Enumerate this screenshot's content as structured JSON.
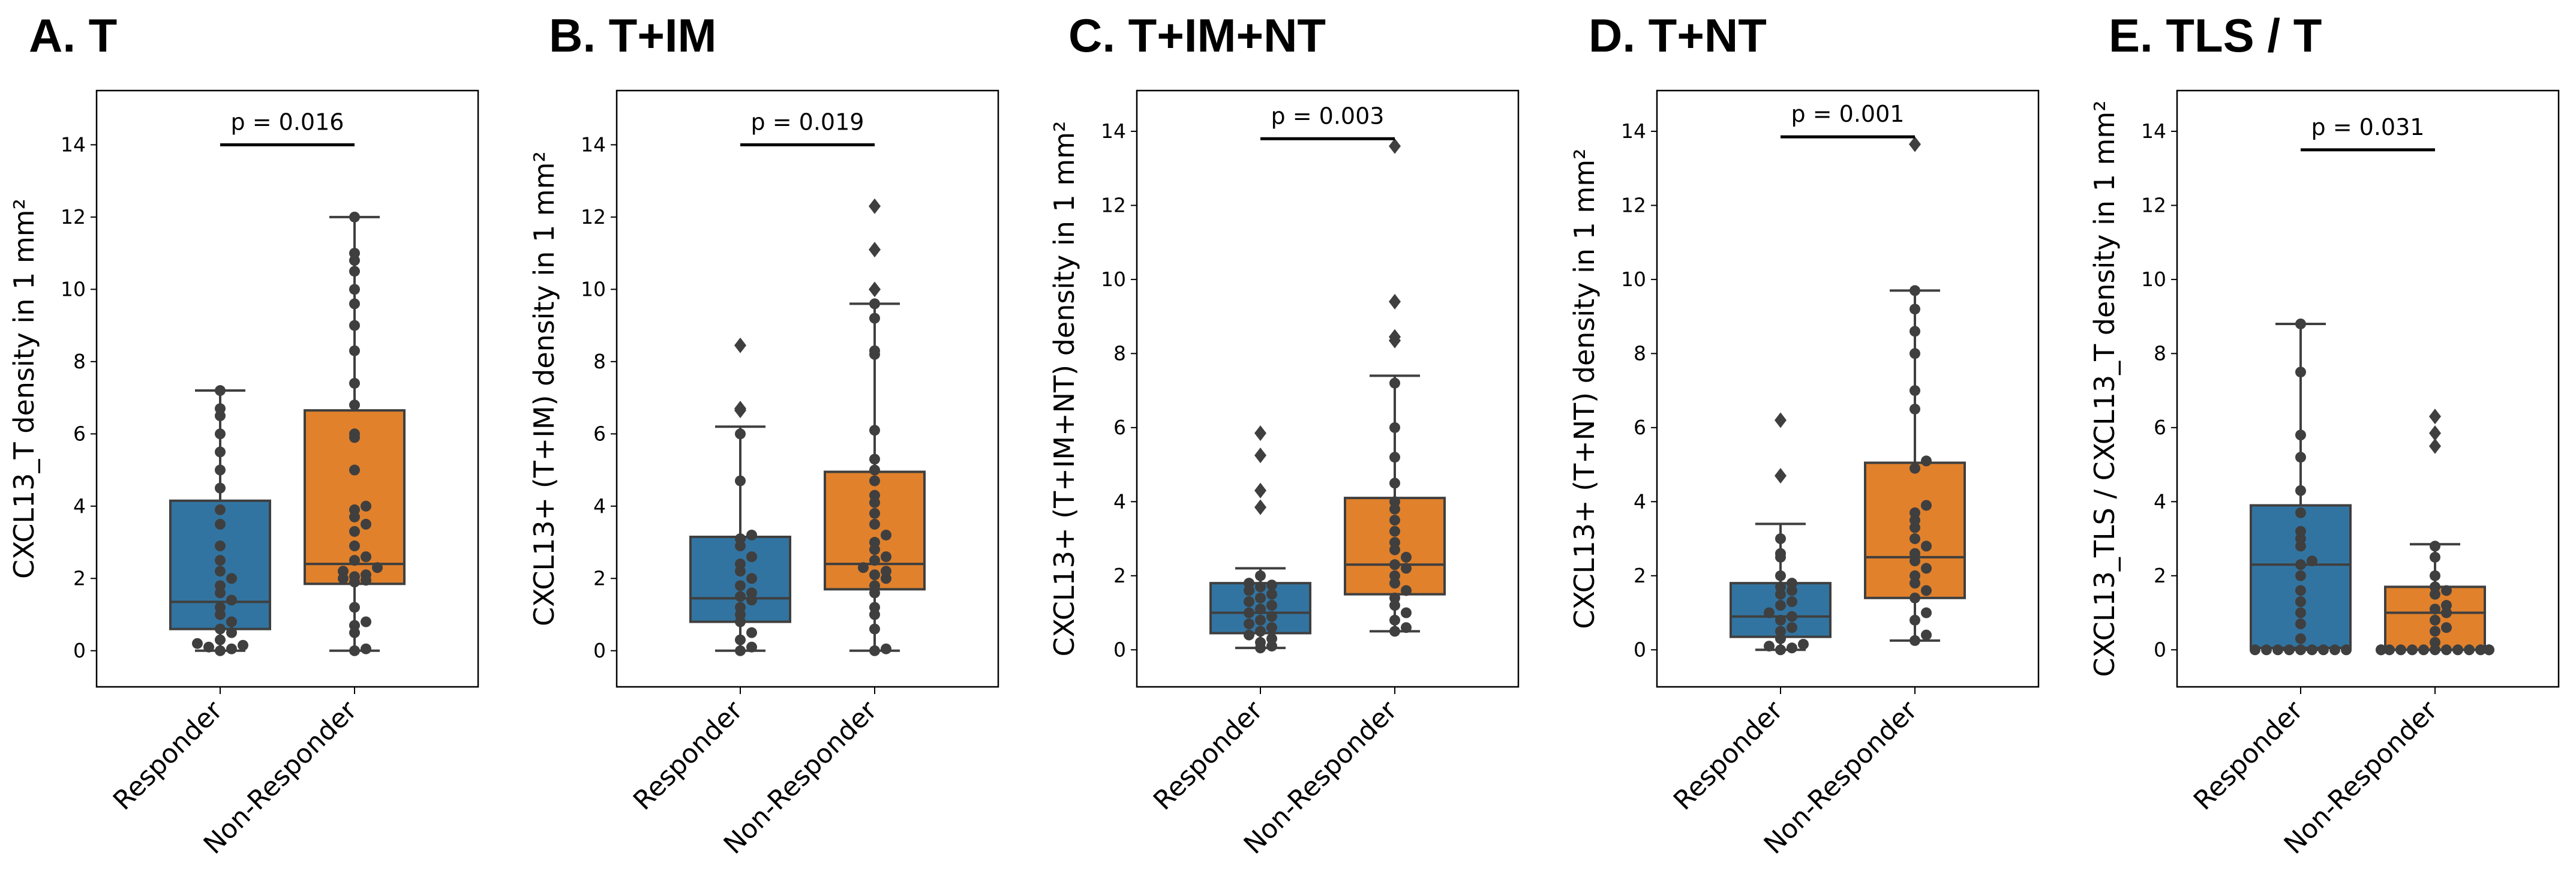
{
  "chart_data": [
    {
      "type": "box",
      "title": "A. T",
      "ylabel": "CXCL13_T density in 1 mm²",
      "categories": [
        "Responder",
        "Non-Responder"
      ],
      "yticks": [
        "0",
        "2",
        "4",
        "6",
        "8",
        "10",
        "12",
        "14"
      ],
      "ylim": [
        -1,
        15.5
      ],
      "p_value": "p = 0.016",
      "p_line_y": 14.0,
      "series": [
        {
          "category": "Responder",
          "box": {
            "whisker_low": 0.0,
            "q1": 0.6,
            "median": 1.35,
            "q3": 4.15,
            "whisker_high": 7.2
          },
          "points": [
            0.0,
            0.05,
            0.1,
            0.15,
            0.2,
            0.3,
            0.5,
            0.6,
            0.8,
            1.0,
            1.2,
            1.4,
            1.6,
            1.8,
            2.0,
            2.2,
            2.5,
            2.9,
            3.5,
            3.9,
            4.5,
            5.0,
            5.5,
            6.0,
            6.5,
            6.7,
            7.2
          ]
        },
        {
          "category": "Non-Responder",
          "box": {
            "whisker_low": 0.0,
            "q1": 1.85,
            "median": 2.4,
            "q3": 6.65,
            "whisker_high": 12.0
          },
          "points": [
            0.0,
            0.05,
            0.5,
            0.7,
            0.8,
            1.2,
            1.9,
            1.95,
            2.0,
            2.05,
            2.1,
            2.2,
            2.3,
            2.5,
            2.6,
            2.9,
            3.3,
            3.5,
            3.7,
            3.9,
            4.0,
            5.0,
            5.9,
            6.0,
            6.8,
            7.4,
            8.3,
            9.0,
            9.6,
            10.0,
            10.5,
            10.8,
            11.0,
            12.0
          ]
        }
      ]
    },
    {
      "type": "box",
      "title": "B. T+IM",
      "ylabel": "CXCL13+ (T+IM) density in 1 mm²",
      "categories": [
        "Responder",
        "Non-Responder"
      ],
      "yticks": [
        "0",
        "2",
        "4",
        "6",
        "8",
        "10",
        "12",
        "14"
      ],
      "ylim": [
        -1,
        15.5
      ],
      "p_value": "p = 0.019",
      "p_line_y": 14.0,
      "series": [
        {
          "category": "Responder",
          "box": {
            "whisker_low": 0.0,
            "q1": 0.8,
            "median": 1.45,
            "q3": 3.15,
            "whisker_high": 6.2
          },
          "outliers": [
            6.65,
            6.7,
            8.45
          ],
          "points": [
            0.0,
            0.1,
            0.3,
            0.5,
            0.8,
            1.0,
            1.2,
            1.4,
            1.5,
            1.6,
            1.8,
            2.0,
            2.2,
            2.4,
            2.6,
            2.9,
            3.1,
            3.2,
            4.7,
            6.0
          ]
        },
        {
          "category": "Non-Responder",
          "box": {
            "whisker_low": 0.0,
            "q1": 1.7,
            "median": 2.4,
            "q3": 4.95,
            "whisker_high": 9.6
          },
          "outliers": [
            10.0,
            11.1,
            12.3
          ],
          "points": [
            0.0,
            0.05,
            0.6,
            1.0,
            1.2,
            1.6,
            1.8,
            2.0,
            2.1,
            2.2,
            2.3,
            2.5,
            2.6,
            2.8,
            3.0,
            3.2,
            3.5,
            3.8,
            4.1,
            4.3,
            4.7,
            5.0,
            5.3,
            6.1,
            8.2,
            8.3,
            9.2,
            9.6
          ]
        }
      ]
    },
    {
      "type": "box",
      "title": "C. T+IM+NT",
      "ylabel": "CXCL13+ (T+IM+NT) density in 1 mm²",
      "categories": [
        "Responder",
        "Non-Responder"
      ],
      "yticks": [
        "0",
        "2",
        "4",
        "6",
        "8",
        "10",
        "12",
        "14"
      ],
      "ylim": [
        -1,
        15.1
      ],
      "p_value": "p = 0.003",
      "p_line_y": 13.8,
      "series": [
        {
          "category": "Responder",
          "box": {
            "whisker_low": 0.05,
            "q1": 0.45,
            "median": 1.0,
            "q3": 1.8,
            "whisker_high": 2.2
          },
          "outliers": [
            3.85,
            4.3,
            5.25,
            5.85
          ],
          "points": [
            0.05,
            0.1,
            0.2,
            0.3,
            0.4,
            0.5,
            0.6,
            0.7,
            0.8,
            0.9,
            1.0,
            1.1,
            1.2,
            1.3,
            1.4,
            1.5,
            1.6,
            1.7,
            1.75,
            1.8,
            2.0
          ]
        },
        {
          "category": "Non-Responder",
          "box": {
            "whisker_low": 0.5,
            "q1": 1.5,
            "median": 2.3,
            "q3": 4.1,
            "whisker_high": 7.4
          },
          "outliers": [
            8.35,
            8.45,
            9.4,
            13.6
          ],
          "points": [
            0.5,
            0.6,
            0.8,
            1.0,
            1.2,
            1.4,
            1.6,
            1.8,
            2.0,
            2.2,
            2.3,
            2.5,
            2.7,
            2.9,
            3.2,
            3.5,
            3.8,
            4.0,
            4.5,
            5.2,
            6.0,
            7.2
          ]
        }
      ]
    },
    {
      "type": "box",
      "title": "D. T+NT",
      "ylabel": "CXCL13+ (T+NT) density in 1 mm²",
      "categories": [
        "Responder",
        "Non-Responder"
      ],
      "yticks": [
        "0",
        "2",
        "4",
        "6",
        "8",
        "10",
        "12",
        "14"
      ],
      "ylim": [
        -1,
        15.1
      ],
      "p_value": "p = 0.001",
      "p_line_y": 13.85,
      "series": [
        {
          "category": "Responder",
          "box": {
            "whisker_low": 0.0,
            "q1": 0.35,
            "median": 0.9,
            "q3": 1.8,
            "whisker_high": 3.4
          },
          "outliers": [
            4.7,
            6.2
          ],
          "points": [
            0.0,
            0.05,
            0.1,
            0.15,
            0.3,
            0.5,
            0.6,
            0.8,
            0.9,
            1.0,
            1.2,
            1.3,
            1.5,
            1.6,
            1.7,
            1.8,
            2.0,
            2.5,
            2.6,
            3.0
          ]
        },
        {
          "category": "Non-Responder",
          "box": {
            "whisker_low": 0.25,
            "q1": 1.4,
            "median": 2.5,
            "q3": 5.05,
            "whisker_high": 9.7
          },
          "outliers": [
            13.65
          ],
          "points": [
            0.25,
            0.4,
            0.8,
            1.0,
            1.4,
            1.6,
            1.8,
            2.0,
            2.2,
            2.4,
            2.6,
            2.8,
            3.0,
            3.3,
            3.5,
            3.7,
            3.9,
            4.9,
            5.1,
            6.5,
            7.0,
            8.0,
            8.6,
            9.2,
            9.7
          ]
        }
      ]
    },
    {
      "type": "box",
      "title": "E. TLS / T",
      "ylabel": "CXCL13_TLS / CXCL13_T density in 1 mm²",
      "categories": [
        "Responder",
        "Non-Responder"
      ],
      "yticks": [
        "0",
        "2",
        "4",
        "6",
        "8",
        "10",
        "12",
        "14"
      ],
      "ylim": [
        -1,
        15.1
      ],
      "p_value": "p = 0.031",
      "p_line_y": 13.5,
      "series": [
        {
          "category": "Responder",
          "box": {
            "whisker_low": 0.0,
            "q1": 0.05,
            "median": 2.3,
            "q3": 3.9,
            "whisker_high": 8.8
          },
          "points": [
            0.0,
            0.0,
            0.0,
            0.0,
            0.0,
            0.0,
            0.0,
            0.0,
            0.0,
            0.3,
            0.7,
            1.0,
            1.3,
            1.6,
            2.0,
            2.3,
            2.4,
            2.8,
            3.0,
            3.2,
            3.7,
            4.3,
            5.2,
            5.8,
            7.5,
            8.8
          ]
        },
        {
          "category": "Non-Responder",
          "box": {
            "whisker_low": 0.0,
            "q1": 0.0,
            "median": 1.0,
            "q3": 1.7,
            "whisker_high": 2.85
          },
          "outliers": [
            5.5,
            5.85,
            6.3
          ],
          "points": [
            0.0,
            0.0,
            0.0,
            0.0,
            0.0,
            0.0,
            0.0,
            0.0,
            0.0,
            0.0,
            0.0,
            0.0,
            0.0,
            0.2,
            0.5,
            0.6,
            0.8,
            1.0,
            1.1,
            1.2,
            1.5,
            1.6,
            1.7,
            2.0,
            2.5,
            2.8
          ]
        }
      ]
    }
  ],
  "colors": {
    "responder": "#3274a1",
    "non_responder": "#e1812c",
    "lines": "#3f3f3f",
    "points": "#3f3f3f"
  }
}
